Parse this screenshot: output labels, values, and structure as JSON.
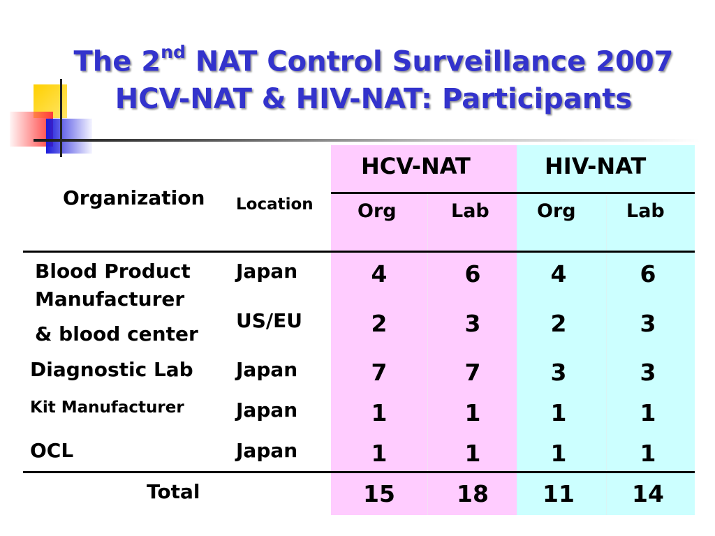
{
  "title": {
    "line1_pre": "The 2",
    "line1_sup": "nd",
    "line1_post": " NAT Control Surveillance 2007",
    "line2": "HCV-NAT & HIV-NAT: Participants"
  },
  "table": {
    "col_organization": "Organization",
    "col_location": "Location",
    "group_hcv": "HCV-NAT",
    "group_hiv": "HIV-NAT",
    "sub_org": "Org",
    "sub_lab": "Lab",
    "rows": [
      {
        "org_line1": "Blood Product",
        "org_line2": "Manufacturer",
        "org_line3": "& blood center",
        "location": "Japan",
        "values": [
          "4",
          "6",
          "4",
          "6"
        ]
      },
      {
        "location": "US/EU",
        "values": [
          "2",
          "3",
          "2",
          "3"
        ]
      },
      {
        "org": "Diagnostic Lab",
        "location": "Japan",
        "values": [
          "7",
          "7",
          "3",
          "3"
        ]
      },
      {
        "org": "Kit Manufacturer",
        "location": "Japan",
        "values": [
          "1",
          "1",
          "1",
          "1"
        ]
      },
      {
        "org": "OCL",
        "location": "Japan",
        "values": [
          "1",
          "1",
          "1",
          "1"
        ]
      }
    ],
    "total_label": "Total",
    "total_values": [
      "15",
      "18",
      "11",
      "14"
    ]
  },
  "colors": {
    "title": "#3333cc",
    "hcv_bg": "#ffccff",
    "hiv_bg": "#ccffff"
  }
}
